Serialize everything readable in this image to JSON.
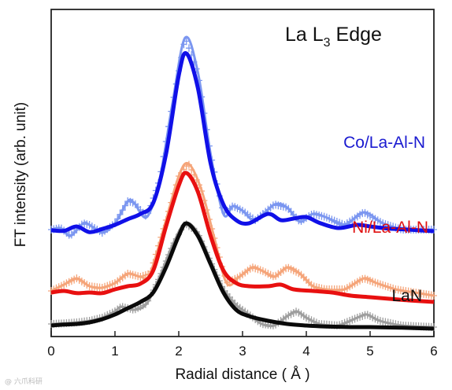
{
  "chart_data": {
    "type": "line",
    "title": "La L",
    "title_sub": "3",
    "title_suffix": " Edge",
    "xlabel": "Radial distance ( Å )",
    "ylabel": "FT intensity (arb. unit)",
    "xlim": [
      0,
      6
    ],
    "xticks": [
      "0",
      "1",
      "2",
      "3",
      "4",
      "5",
      "6"
    ],
    "y_ticks_shown": false,
    "grid": false,
    "legend": "inline labels on the right",
    "series": [
      {
        "name": "Co/La-Al-N",
        "fit_color": "#1010e8",
        "data_color": "#7b96f0",
        "fit": [
          [
            0,
            0.318
          ],
          [
            0.2,
            0.316
          ],
          [
            0.4,
            0.33
          ],
          [
            0.6,
            0.312
          ],
          [
            0.8,
            0.322
          ],
          [
            1.0,
            0.335
          ],
          [
            1.2,
            0.353
          ],
          [
            1.4,
            0.37
          ],
          [
            1.6,
            0.405
          ],
          [
            1.8,
            0.56
          ],
          [
            2.0,
            0.81
          ],
          [
            2.12,
            0.88
          ],
          [
            2.3,
            0.77
          ],
          [
            2.5,
            0.53
          ],
          [
            2.7,
            0.4
          ],
          [
            2.9,
            0.35
          ],
          [
            3.1,
            0.34
          ],
          [
            3.4,
            0.37
          ],
          [
            3.6,
            0.35
          ],
          [
            3.8,
            0.355
          ],
          [
            4.0,
            0.36
          ],
          [
            4.2,
            0.342
          ],
          [
            4.5,
            0.325
          ],
          [
            4.8,
            0.335
          ],
          [
            5.0,
            0.33
          ],
          [
            5.3,
            0.323
          ],
          [
            5.6,
            0.32
          ],
          [
            6.0,
            0.315
          ]
        ],
        "data": [
          [
            0,
            0.32
          ],
          [
            0.15,
            0.325
          ],
          [
            0.3,
            0.3
          ],
          [
            0.5,
            0.34
          ],
          [
            0.6,
            0.335
          ],
          [
            0.8,
            0.31
          ],
          [
            1.0,
            0.34
          ],
          [
            1.2,
            0.41
          ],
          [
            1.3,
            0.405
          ],
          [
            1.5,
            0.36
          ],
          [
            1.7,
            0.48
          ],
          [
            1.9,
            0.72
          ],
          [
            2.1,
            0.93
          ],
          [
            2.3,
            0.82
          ],
          [
            2.5,
            0.56
          ],
          [
            2.7,
            0.37
          ],
          [
            2.85,
            0.395
          ],
          [
            3.0,
            0.38
          ],
          [
            3.2,
            0.35
          ],
          [
            3.5,
            0.4
          ],
          [
            3.7,
            0.39
          ],
          [
            3.9,
            0.345
          ],
          [
            4.1,
            0.37
          ],
          [
            4.3,
            0.36
          ],
          [
            4.6,
            0.335
          ],
          [
            4.9,
            0.375
          ],
          [
            5.2,
            0.34
          ],
          [
            5.5,
            0.32
          ],
          [
            5.8,
            0.32
          ],
          [
            6.0,
            0.32
          ]
        ]
      },
      {
        "name": "Ni/La-Al-N",
        "fit_color": "#e81010",
        "data_color": "#f5a57a",
        "fit": [
          [
            0,
            0.12
          ],
          [
            0.2,
            0.125
          ],
          [
            0.4,
            0.118
          ],
          [
            0.6,
            0.12
          ],
          [
            0.8,
            0.118
          ],
          [
            1.0,
            0.13
          ],
          [
            1.2,
            0.14
          ],
          [
            1.4,
            0.148
          ],
          [
            1.6,
            0.19
          ],
          [
            1.8,
            0.33
          ],
          [
            2.0,
            0.46
          ],
          [
            2.12,
            0.5
          ],
          [
            2.3,
            0.44
          ],
          [
            2.5,
            0.3
          ],
          [
            2.7,
            0.19
          ],
          [
            2.9,
            0.15
          ],
          [
            3.1,
            0.14
          ],
          [
            3.4,
            0.14
          ],
          [
            3.6,
            0.145
          ],
          [
            3.8,
            0.13
          ],
          [
            4.1,
            0.125
          ],
          [
            4.4,
            0.12
          ],
          [
            4.7,
            0.11
          ],
          [
            5.0,
            0.105
          ],
          [
            5.3,
            0.1
          ],
          [
            5.6,
            0.095
          ],
          [
            6.0,
            0.09
          ]
        ],
        "data": [
          [
            0,
            0.125
          ],
          [
            0.2,
            0.145
          ],
          [
            0.4,
            0.165
          ],
          [
            0.6,
            0.14
          ],
          [
            0.8,
            0.135
          ],
          [
            1.0,
            0.15
          ],
          [
            1.2,
            0.18
          ],
          [
            1.4,
            0.17
          ],
          [
            1.55,
            0.18
          ],
          [
            1.8,
            0.35
          ],
          [
            2.0,
            0.49
          ],
          [
            2.15,
            0.53
          ],
          [
            2.35,
            0.45
          ],
          [
            2.55,
            0.3
          ],
          [
            2.75,
            0.15
          ],
          [
            2.95,
            0.17
          ],
          [
            3.15,
            0.2
          ],
          [
            3.3,
            0.19
          ],
          [
            3.5,
            0.17
          ],
          [
            3.7,
            0.2
          ],
          [
            3.9,
            0.18
          ],
          [
            4.1,
            0.14
          ],
          [
            4.3,
            0.13
          ],
          [
            4.6,
            0.13
          ],
          [
            4.9,
            0.165
          ],
          [
            5.1,
            0.15
          ],
          [
            5.4,
            0.13
          ],
          [
            5.7,
            0.12
          ],
          [
            6.0,
            0.11
          ]
        ]
      },
      {
        "name": "LaN",
        "fit_color": "#0a0a0a",
        "data_color": "#9e9e9e",
        "fit": [
          [
            0,
            0.015
          ],
          [
            0.2,
            0.018
          ],
          [
            0.4,
            0.02
          ],
          [
            0.6,
            0.025
          ],
          [
            0.8,
            0.035
          ],
          [
            1.0,
            0.05
          ],
          [
            1.2,
            0.07
          ],
          [
            1.4,
            0.09
          ],
          [
            1.6,
            0.12
          ],
          [
            1.8,
            0.2
          ],
          [
            2.0,
            0.3
          ],
          [
            2.12,
            0.34
          ],
          [
            2.3,
            0.3
          ],
          [
            2.5,
            0.21
          ],
          [
            2.7,
            0.12
          ],
          [
            2.9,
            0.065
          ],
          [
            3.1,
            0.045
          ],
          [
            3.4,
            0.03
          ],
          [
            3.7,
            0.02
          ],
          [
            4.0,
            0.015
          ],
          [
            4.3,
            0.012
          ],
          [
            4.7,
            0.01
          ],
          [
            5.0,
            0.01
          ],
          [
            5.5,
            0.008
          ],
          [
            6.0,
            0.005
          ]
        ],
        "data": [
          [
            0,
            0.02
          ],
          [
            0.2,
            0.022
          ],
          [
            0.4,
            0.025
          ],
          [
            0.6,
            0.03
          ],
          [
            0.8,
            0.04
          ],
          [
            1.0,
            0.06
          ],
          [
            1.1,
            0.075
          ],
          [
            1.3,
            0.065
          ],
          [
            1.5,
            0.085
          ],
          [
            1.7,
            0.17
          ],
          [
            1.9,
            0.27
          ],
          [
            2.1,
            0.34
          ],
          [
            2.3,
            0.31
          ],
          [
            2.5,
            0.22
          ],
          [
            2.7,
            0.13
          ],
          [
            2.9,
            0.08
          ],
          [
            3.1,
            0.05
          ],
          [
            3.3,
            0.02
          ],
          [
            3.5,
            0.015
          ],
          [
            3.7,
            0.045
          ],
          [
            3.85,
            0.06
          ],
          [
            4.0,
            0.04
          ],
          [
            4.2,
            0.02
          ],
          [
            4.5,
            0.015
          ],
          [
            4.8,
            0.04
          ],
          [
            4.95,
            0.05
          ],
          [
            5.15,
            0.03
          ],
          [
            5.5,
            0.015
          ],
          [
            6.0,
            0.01
          ]
        ]
      }
    ]
  },
  "watermark": "@ 六爪科研"
}
